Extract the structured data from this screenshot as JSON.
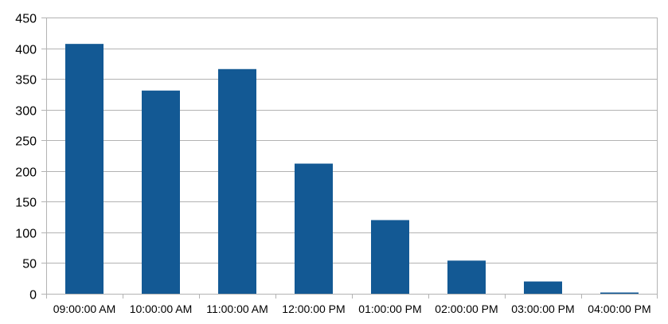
{
  "chart_data": {
    "type": "bar",
    "title": "",
    "xlabel": "",
    "ylabel": "",
    "categories": [
      "09:00:00 AM",
      "10:00:00 AM",
      "11:00:00 AM",
      "12:00:00 PM",
      "01:00:00 PM",
      "02:00:00 PM",
      "03:00:00 PM",
      "04:00:00 PM"
    ],
    "values": [
      407,
      331,
      366,
      212,
      120,
      54,
      20,
      2
    ],
    "ylim": [
      0,
      450
    ],
    "yticks": [
      0,
      50,
      100,
      150,
      200,
      250,
      300,
      350,
      400,
      450
    ],
    "grid": true,
    "legend": "none",
    "colors": {
      "bar": "#135994",
      "grid": "#b3b3b3",
      "axis": "#b3b3b3"
    }
  }
}
